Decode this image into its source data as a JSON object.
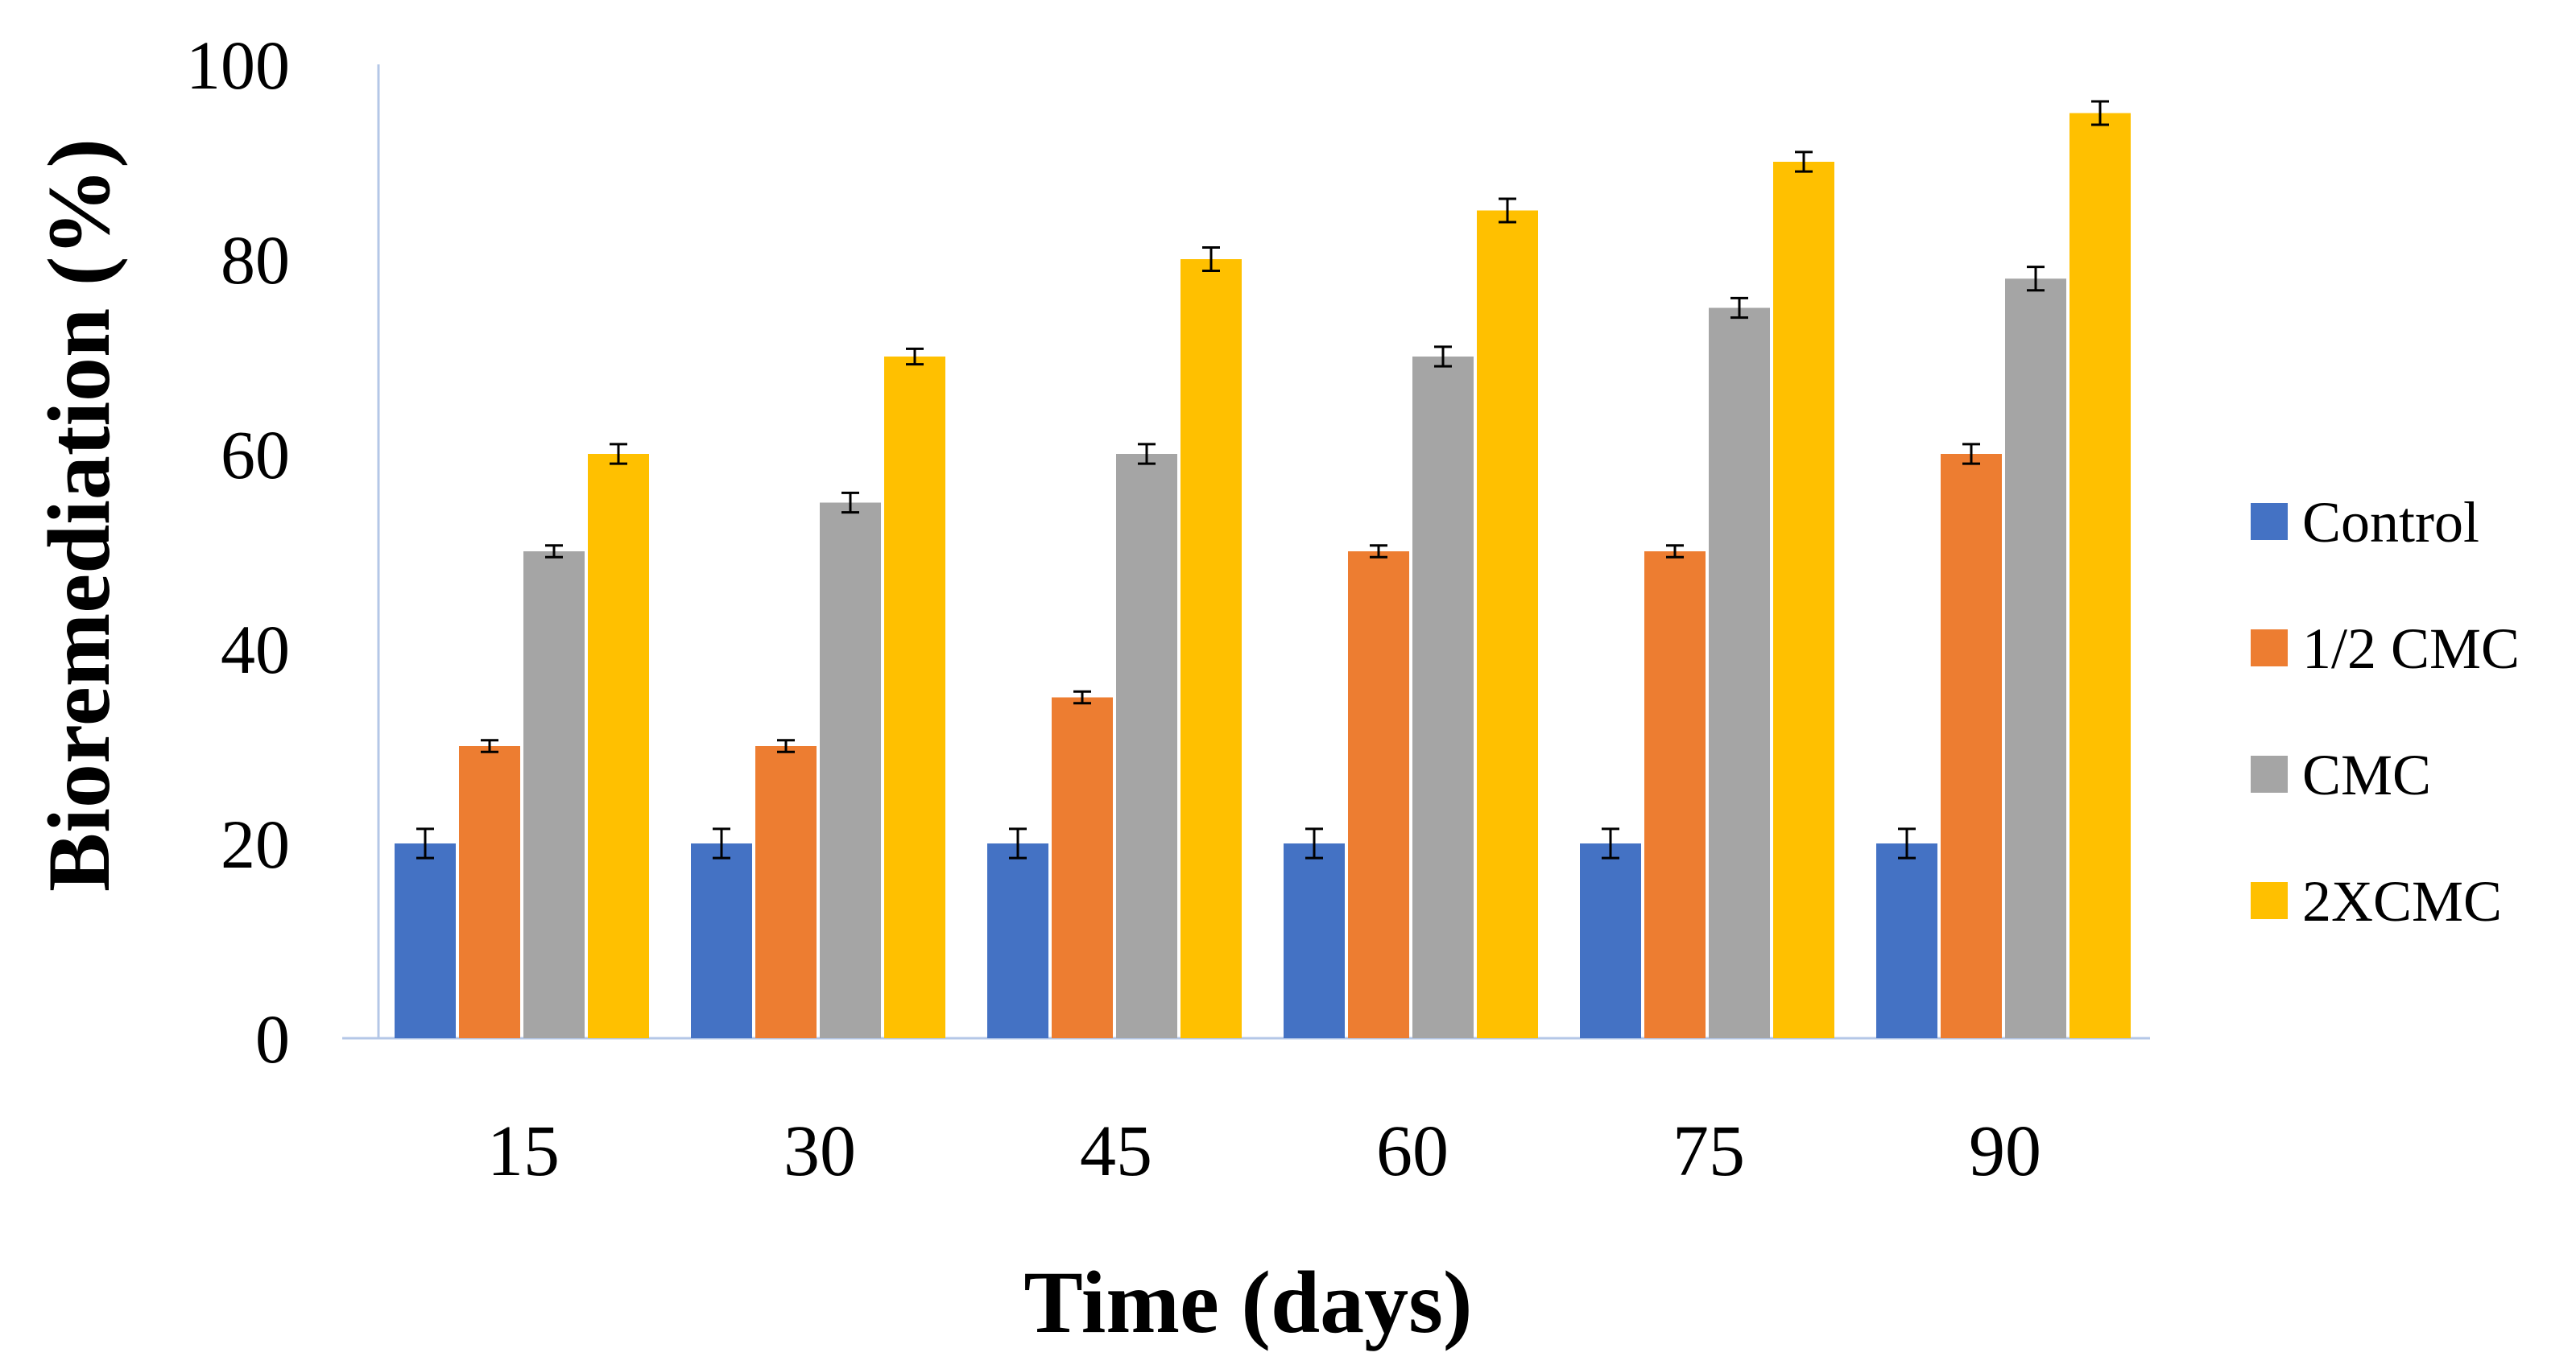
{
  "chart_data": {
    "type": "bar",
    "title": "",
    "xlabel": "Time (days)",
    "ylabel": "Bioremediation  (%)",
    "categories": [
      "15",
      "30",
      "45",
      "60",
      "75",
      "90"
    ],
    "ylim": [
      0,
      100
    ],
    "yticks": [
      0,
      20,
      40,
      60,
      80,
      100
    ],
    "grid": false,
    "legend_position": "right",
    "series": [
      {
        "name": "Control",
        "legend_label": "Control",
        "color": "#4472C4",
        "values": [
          20,
          20,
          20,
          20,
          20,
          20
        ],
        "errors": [
          1.5,
          1.5,
          1.5,
          1.5,
          1.5,
          1.5
        ]
      },
      {
        "name": "1/2 CMC",
        "legend_label": "1/2 CMC",
        "color": "#ED7D31",
        "values": [
          30,
          30,
          35,
          50,
          50,
          60
        ],
        "errors": [
          0.6,
          0.6,
          0.6,
          0.6,
          0.6,
          1.0
        ]
      },
      {
        "name": "CMC",
        "legend_label": "CMC",
        "color": "#A5A5A5",
        "values": [
          50,
          55,
          60,
          70,
          75,
          78
        ],
        "errors": [
          0.6,
          1.0,
          1.0,
          1.0,
          1.0,
          1.2
        ]
      },
      {
        "name": "2XCMC",
        "legend_label": "2XCMC",
        "color": "#FFC000",
        "values": [
          60,
          70,
          80,
          85,
          90,
          95
        ],
        "errors": [
          1.0,
          0.8,
          1.2,
          1.2,
          1.0,
          1.2
        ]
      }
    ]
  }
}
